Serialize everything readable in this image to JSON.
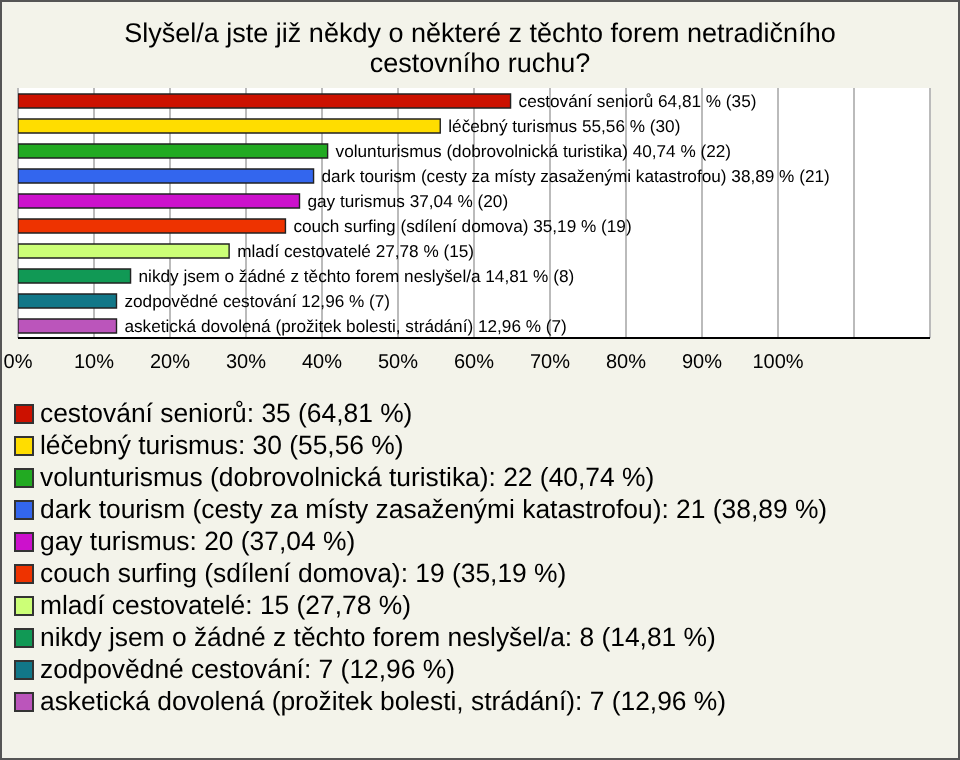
{
  "chart_data": {
    "type": "bar",
    "orientation": "horizontal",
    "title": "Slyšel/a jste již někdy o některé z těchto forem netradičního cestovního ruchu?",
    "categories": [
      null,
      null,
      null,
      null,
      null,
      null,
      null,
      null,
      null,
      null
    ],
    "values": [
      64.81,
      55.56,
      40.74,
      38.89,
      37.04,
      35.19,
      27.78,
      14.81,
      12.96,
      12.96
    ],
    "colors": [
      "#cc1100",
      "#ffdd00",
      "#22aa22",
      "#3366ee",
      "#cc11cc",
      "#ee3300",
      "#ccff77",
      "#119955",
      "#117788",
      "#bb55bb"
    ],
    "value_labels": [
      "cestování seniorů 64,81 % (35)",
      "léčebný turismus 55,56 % (30)",
      "volunturismus (dobrovolnická turistika) 40,74 % (22)",
      "dark tourism (cesty za místy zasaženými katastrofou) 38,89 % (21)",
      "gay turismus 37,04 % (20)",
      "couch surfing (sdílení domova) 35,19 % (19)",
      "mladí cestovatelé 27,78 % (15)",
      "nikdy jsem o žádné z těchto forem neslyšel/a 14,81 % (8)",
      "zodpovědné cestování 12,96 % (7)",
      "asketická dovolená (prožitek bolesti, strádání) 12,96 % (7)"
    ],
    "annotations": [
      "cestování seniorů: 35 (64,81 %)",
      "léčebný turismus: 30 (55,56 %)",
      "volunturismus (dobrovolnická turistika): 22 (40,74 %)",
      "dark tourism (cesty za místy zasaženými katastrofou): 21 (38,89 %)",
      "gay turismus: 20 (37,04 %)",
      "couch surfing (sdílení domova): 19 (35,19 %)",
      "mladí cestovatelé: 15 (27,78 %)",
      "nikdy jsem o žádné z těchto forem neslyšel/a: 8 (14,81 %)",
      "zodpovědné cestování: 7 (12,96 %)",
      "asketická dovolená (prožitek bolesti, strádání): 7 (12,96 %)"
    ],
    "xlim": [
      0,
      120
    ],
    "xticks": [
      {
        "value": 0,
        "label": "0%"
      },
      {
        "value": 10,
        "label": "10%"
      },
      {
        "value": 20,
        "label": "20%"
      },
      {
        "value": 30,
        "label": "30%"
      },
      {
        "value": 40,
        "label": "40%"
      },
      {
        "value": 50,
        "label": "50%"
      },
      {
        "value": 60,
        "label": "60%"
      },
      {
        "value": 70,
        "label": "70%"
      },
      {
        "value": 80,
        "label": "80%"
      },
      {
        "value": 90,
        "label": "90%"
      },
      {
        "value": 100,
        "label": "100%"
      },
      {
        "value": 110,
        "label": null
      }
    ],
    "grid": "x",
    "tick_labels": "x"
  }
}
